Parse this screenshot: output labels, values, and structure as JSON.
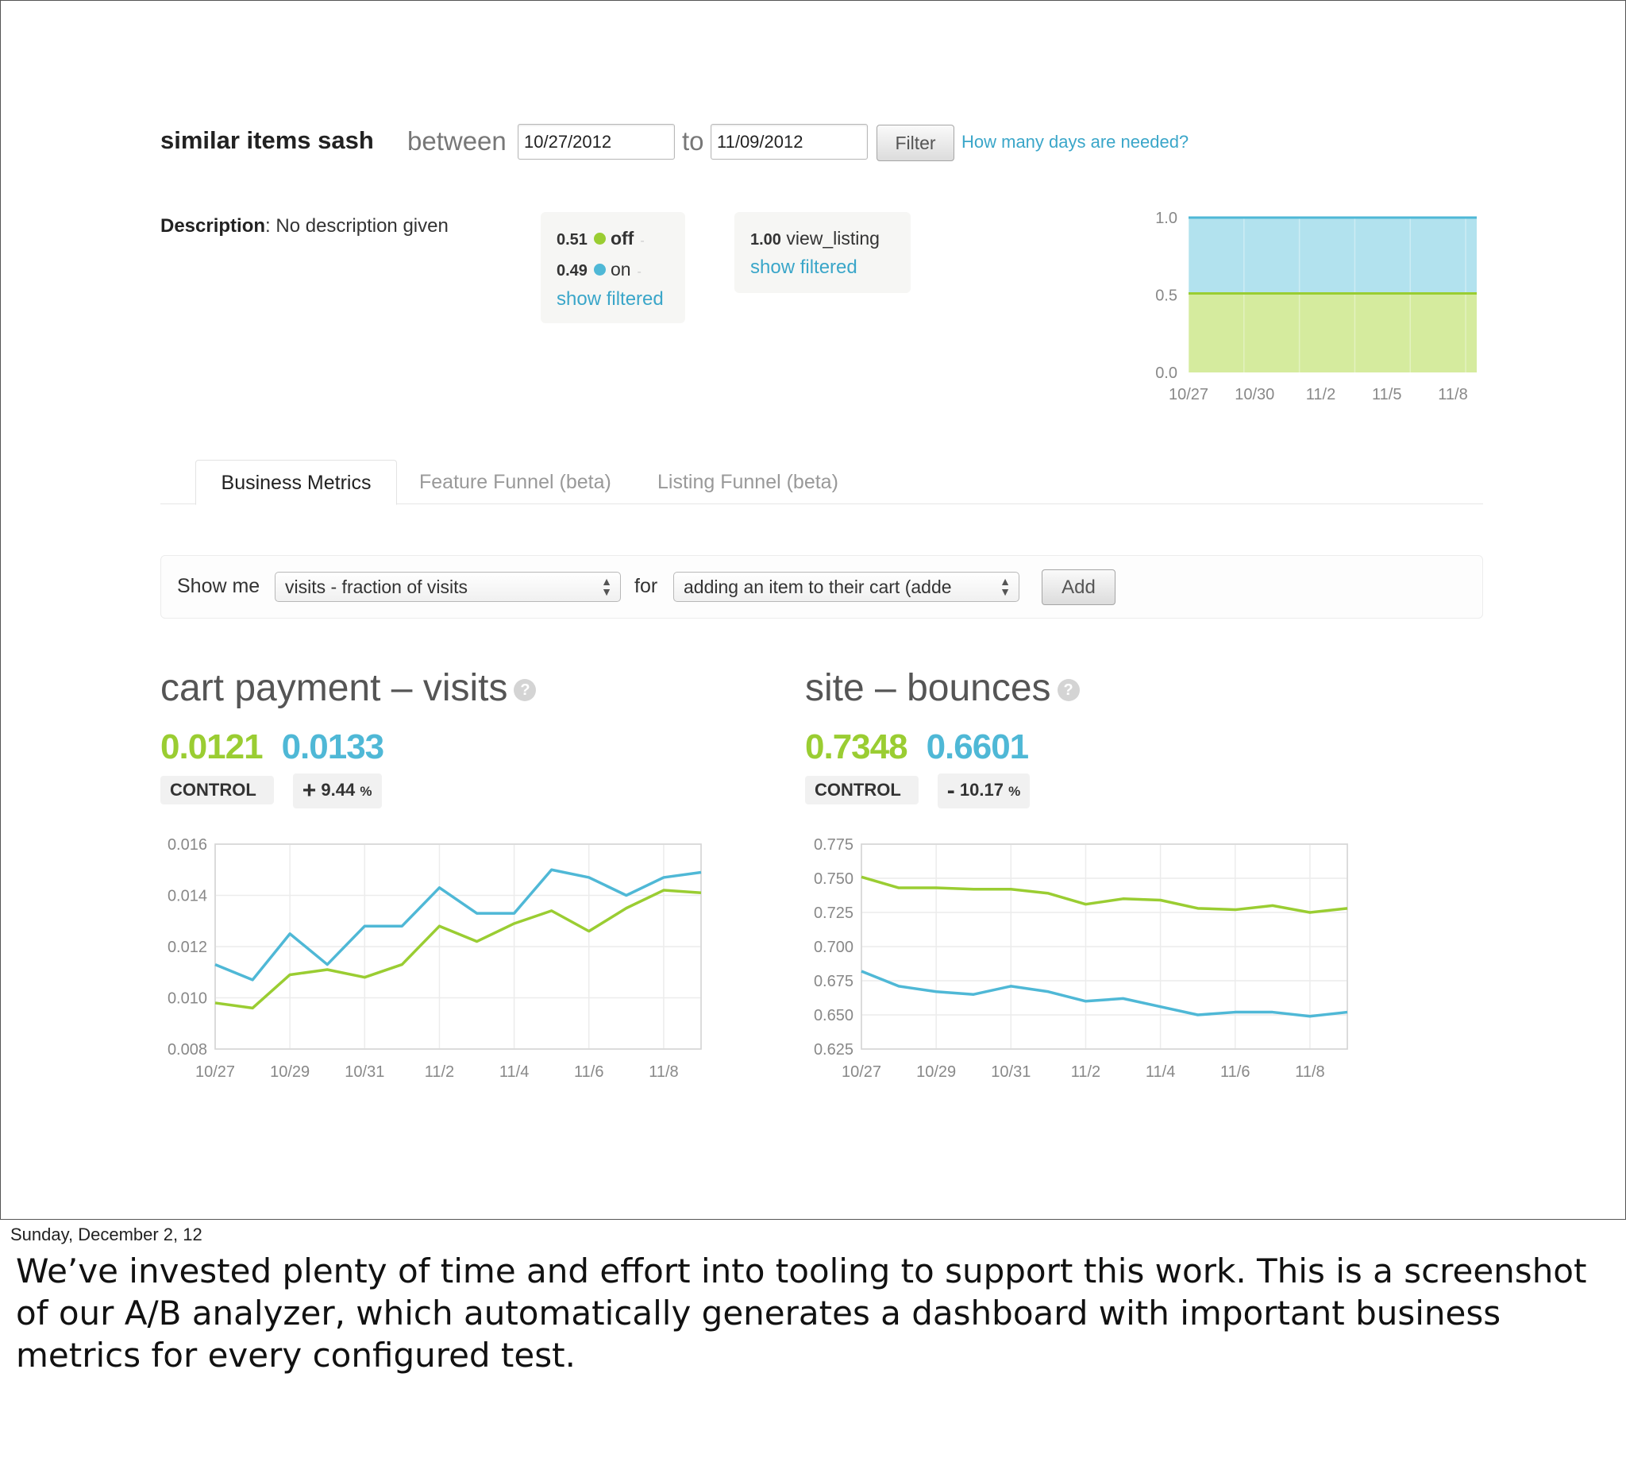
{
  "header": {
    "title": "similar items sash",
    "between_label": "between",
    "date_from": "10/27/2012",
    "to_label": "to",
    "date_to": "11/09/2012",
    "filter_label": "Filter",
    "days_link": "How many days are needed?"
  },
  "description": {
    "label": "Description",
    "text": ": No description given"
  },
  "variants": {
    "rows": [
      {
        "value": "0.51",
        "name": "off",
        "color": "#9acd32",
        "dash": "-"
      },
      {
        "value": "0.49",
        "name": "on",
        "color": "#4fb8d6",
        "dash": "-"
      }
    ],
    "link": "show filtered"
  },
  "events": {
    "value": "1.00",
    "name": "view_listing",
    "link": "show filtered"
  },
  "tabs": [
    {
      "label": "Business Metrics",
      "active": true
    },
    {
      "label": "Feature Funnel (beta)",
      "active": false
    },
    {
      "label": "Listing Funnel (beta)",
      "active": false
    }
  ],
  "showme": {
    "show_label": "Show me",
    "metric_value": "visits - fraction of visits",
    "for_label": "for",
    "event_value": "adding an item to their cart (adde",
    "add_label": "Add"
  },
  "metrics": [
    {
      "title": "cart payment – visits",
      "control_value": "0.0121",
      "treatment_value": "0.0133",
      "control_badge": "CONTROL",
      "change_sign": "+",
      "change_value": "9.44",
      "change_unit": "%"
    },
    {
      "title": "site – bounces",
      "control_value": "0.7348",
      "treatment_value": "0.6601",
      "control_badge": "CONTROL",
      "change_sign": "-",
      "change_value": "10.17",
      "change_unit": "%"
    }
  ],
  "colors": {
    "control": "#9acd32",
    "treatment": "#4fb8d6",
    "control_fill": "#d5eb9e",
    "treatment_fill": "#b2e2ee"
  },
  "chart_data": [
    {
      "type": "area",
      "stacked": true,
      "x_ticks": [
        "10/27",
        "10/30",
        "11/2",
        "11/5",
        "11/8"
      ],
      "y_ticks": [
        "1.0",
        "0.5",
        "0.0"
      ],
      "ylim": [
        0,
        1
      ],
      "series": [
        {
          "values": [
            0.51,
            0.51,
            0.51,
            0.51,
            0.51,
            0.51,
            0.51,
            0.51,
            0.51,
            0.51,
            0.51,
            0.51,
            0.51,
            0.51
          ]
        },
        {
          "values": [
            0.49,
            0.49,
            0.49,
            0.49,
            0.49,
            0.49,
            0.49,
            0.49,
            0.49,
            0.49,
            0.49,
            0.49,
            0.49,
            0.49
          ]
        }
      ],
      "grid": true
    },
    {
      "type": "line",
      "x_ticks": [
        "10/27",
        "10/29",
        "10/31",
        "11/2",
        "11/4",
        "11/6",
        "11/8"
      ],
      "y_ticks": [
        "0.016",
        "0.014",
        "0.012",
        "0.010",
        "0.008"
      ],
      "ylim": [
        0.008,
        0.016
      ],
      "series": [
        {
          "values": [
            0.0098,
            0.0096,
            0.0109,
            0.0111,
            0.0108,
            0.0113,
            0.0128,
            0.0122,
            0.0129,
            0.0134,
            0.0126,
            0.0135,
            0.0142,
            0.0141
          ]
        },
        {
          "values": [
            0.0113,
            0.0107,
            0.0125,
            0.0113,
            0.0128,
            0.0128,
            0.0143,
            0.0133,
            0.0133,
            0.015,
            0.0147,
            0.014,
            0.0147,
            0.0149
          ]
        }
      ],
      "grid": true
    },
    {
      "type": "line",
      "x_ticks": [
        "10/27",
        "10/29",
        "10/31",
        "11/2",
        "11/4",
        "11/6",
        "11/8"
      ],
      "y_ticks": [
        "0.775",
        "0.750",
        "0.725",
        "0.700",
        "0.675",
        "0.650",
        "0.625"
      ],
      "ylim": [
        0.625,
        0.775
      ],
      "series": [
        {
          "values": [
            0.751,
            0.743,
            0.743,
            0.742,
            0.742,
            0.739,
            0.731,
            0.735,
            0.734,
            0.728,
            0.727,
            0.73,
            0.725,
            0.728
          ]
        },
        {
          "values": [
            0.682,
            0.671,
            0.667,
            0.665,
            0.671,
            0.667,
            0.66,
            0.662,
            0.656,
            0.65,
            0.652,
            0.652,
            0.649,
            0.652
          ]
        }
      ],
      "grid": true
    }
  ],
  "footer": {
    "date": "Sunday, December 2, 12",
    "caption": "We’ve invested plenty of time and effort into tooling to support this work. This is a screenshot of our A/B analyzer, which automatically generates a dashboard with important business metrics for every configured test."
  }
}
